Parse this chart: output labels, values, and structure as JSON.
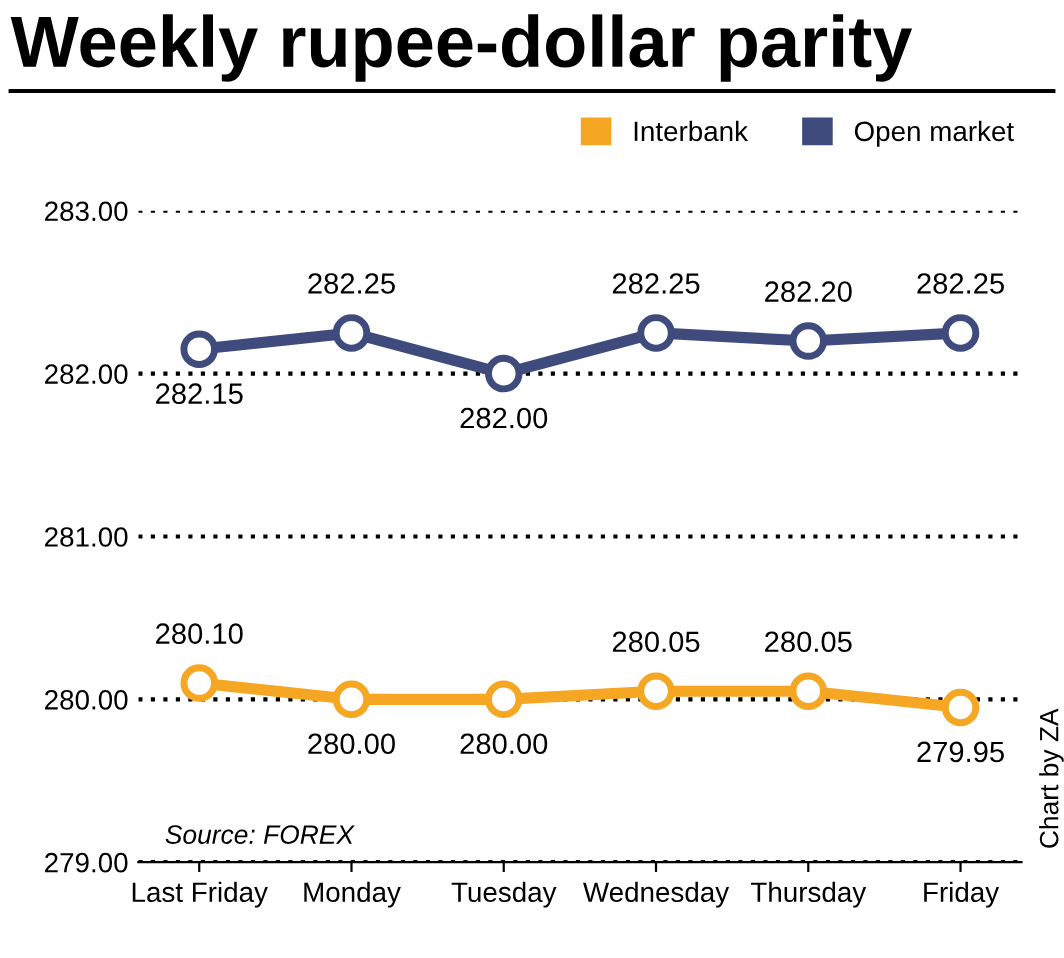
{
  "chart_data": {
    "type": "line",
    "title": "Weekly rupee-dollar parity",
    "categories": [
      "Last Friday",
      "Monday",
      "Tuesday",
      "Wednesday",
      "Thursday",
      "Friday"
    ],
    "series": [
      {
        "name": "Interbank",
        "color": "#f5a623",
        "values": [
          280.1,
          280.0,
          280.0,
          280.05,
          280.05,
          279.95
        ],
        "value_labels": [
          "280.10",
          "280.00",
          "280.00",
          "280.05",
          "280.05",
          "279.95"
        ]
      },
      {
        "name": "Open market",
        "color": "#3f4b7c",
        "values": [
          282.15,
          282.25,
          282.0,
          282.25,
          282.2,
          282.25
        ],
        "value_labels": [
          "282.15",
          "282.25",
          "282.00",
          "282.25",
          "282.20",
          "282.25"
        ]
      }
    ],
    "ylim": [
      279,
      283
    ],
    "yticks": [
      {
        "value": 279,
        "label": "279.00"
      },
      {
        "value": 280,
        "label": "280.00"
      },
      {
        "value": 281,
        "label": "281.00"
      },
      {
        "value": 282,
        "label": "282.00"
      },
      {
        "value": 283,
        "label": "283.00"
      }
    ],
    "grid": "y",
    "legend": "top right",
    "marker": "circle",
    "line_style": "solid",
    "annotations": [
      "Source: FOREX",
      "Chart by ZA"
    ]
  }
}
